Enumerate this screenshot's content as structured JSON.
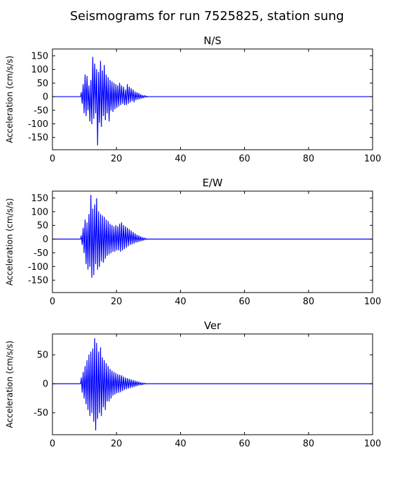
{
  "figure": {
    "title": "Seismograms for run 7525825, station sung"
  },
  "style": {
    "line_color": "#0000ff",
    "axis_color": "#000000",
    "background": "#ffffff"
  },
  "chart_data": [
    {
      "type": "line",
      "title": "N/S",
      "xlabel": "",
      "ylabel": "Acceleration (cm/s/s)",
      "xlim": [
        0,
        100
      ],
      "ylim": [
        -195,
        175
      ],
      "xticks": [
        0,
        20,
        40,
        60,
        80,
        100
      ],
      "yticks": [
        -150,
        -100,
        -50,
        0,
        50,
        100,
        150
      ],
      "grid": false,
      "series": [
        {
          "x": [
            0,
            8.8,
            9.0,
            9.3,
            9.6,
            9.9,
            10.2,
            10.5,
            10.8,
            11.1,
            11.4,
            11.7,
            12.0,
            12.3,
            12.6,
            12.9,
            13.2,
            13.5,
            13.8,
            14.1,
            14.4,
            14.7,
            15.0,
            15.3,
            15.6,
            15.9,
            16.2,
            16.5,
            16.8,
            17.1,
            17.4,
            17.7,
            18.0,
            18.3,
            18.6,
            18.9,
            19.2,
            19.5,
            19.8,
            20.1,
            20.4,
            20.7,
            21.0,
            21.3,
            21.6,
            21.9,
            22.2,
            22.5,
            22.8,
            23.1,
            23.4,
            23.7,
            24.0,
            24.3,
            24.6,
            24.9,
            25.2,
            25.5,
            25.8,
            26.1,
            26.4,
            26.7,
            27.0,
            27.3,
            27.6,
            27.9,
            28.2,
            28.5,
            28.8,
            29.1,
            29.4,
            29.7,
            30.0,
            30.5,
            100
          ],
          "y": [
            0,
            0,
            15,
            -25,
            45,
            -60,
            80,
            -70,
            75,
            -50,
            40,
            -90,
            60,
            -100,
            145,
            -80,
            120,
            -60,
            100,
            -178,
            90,
            -95,
            130,
            -110,
            95,
            -70,
            115,
            -85,
            80,
            -60,
            70,
            -90,
            60,
            -50,
            55,
            -55,
            50,
            -45,
            45,
            -40,
            40,
            -35,
            50,
            -30,
            40,
            -25,
            35,
            -30,
            25,
            -30,
            45,
            -25,
            35,
            -20,
            30,
            -15,
            25,
            -20,
            18,
            -12,
            15,
            -10,
            12,
            -8,
            8,
            -6,
            5,
            -4,
            4,
            -2,
            2,
            -1,
            0,
            0,
            0
          ]
        }
      ]
    },
    {
      "type": "line",
      "title": "E/W",
      "xlabel": "",
      "ylabel": "Acceleration (cm/s/s)",
      "xlim": [
        0,
        100
      ],
      "ylim": [
        -195,
        175
      ],
      "xticks": [
        0,
        20,
        40,
        60,
        80,
        100
      ],
      "yticks": [
        -150,
        -100,
        -50,
        0,
        50,
        100,
        150
      ],
      "grid": false,
      "series": [
        {
          "x": [
            0,
            8.8,
            9.0,
            9.3,
            9.6,
            9.9,
            10.2,
            10.5,
            10.8,
            11.1,
            11.4,
            11.7,
            12.0,
            12.3,
            12.6,
            12.9,
            13.2,
            13.5,
            13.8,
            14.1,
            14.4,
            14.7,
            15.0,
            15.3,
            15.6,
            15.9,
            16.2,
            16.5,
            16.8,
            17.1,
            17.4,
            17.7,
            18.0,
            18.3,
            18.6,
            18.9,
            19.2,
            19.5,
            19.8,
            20.1,
            20.4,
            20.7,
            21.0,
            21.3,
            21.6,
            21.9,
            22.2,
            22.5,
            22.8,
            23.1,
            23.4,
            23.7,
            24.0,
            24.3,
            24.6,
            24.9,
            25.2,
            25.5,
            25.8,
            26.1,
            26.4,
            26.7,
            27.0,
            27.3,
            27.6,
            27.9,
            28.2,
            28.5,
            28.8,
            29.1,
            29.4,
            29.7,
            30.0,
            30.5,
            100
          ],
          "y": [
            0,
            0,
            12,
            -20,
            40,
            -50,
            70,
            -90,
            60,
            -110,
            90,
            -100,
            160,
            -140,
            110,
            -130,
            125,
            -90,
            148,
            -110,
            100,
            -100,
            90,
            -80,
            85,
            -85,
            80,
            -70,
            70,
            -60,
            65,
            -55,
            55,
            -50,
            50,
            -45,
            45,
            -45,
            50,
            -40,
            45,
            -40,
            55,
            -45,
            60,
            -40,
            50,
            -35,
            45,
            -30,
            40,
            -25,
            35,
            -20,
            30,
            -18,
            25,
            -15,
            20,
            -12,
            15,
            -10,
            12,
            -8,
            9,
            -6,
            6,
            -4,
            4,
            -2,
            2,
            -1,
            0,
            0,
            0
          ]
        }
      ]
    },
    {
      "type": "line",
      "title": "Ver",
      "xlabel": "",
      "ylabel": "Acceleration (cm/s/s)",
      "xlim": [
        0,
        100
      ],
      "ylim": [
        -88,
        86
      ],
      "xticks": [
        0,
        20,
        40,
        60,
        80,
        100
      ],
      "yticks": [
        -50,
        0,
        50
      ],
      "grid": false,
      "series": [
        {
          "x": [
            0,
            8.8,
            9.0,
            9.3,
            9.6,
            9.9,
            10.2,
            10.5,
            10.8,
            11.1,
            11.4,
            11.7,
            12.0,
            12.3,
            12.6,
            12.9,
            13.2,
            13.5,
            13.8,
            14.1,
            14.4,
            14.7,
            15.0,
            15.3,
            15.6,
            15.9,
            16.2,
            16.5,
            16.8,
            17.1,
            17.4,
            17.7,
            18.0,
            18.3,
            18.6,
            18.9,
            19.2,
            19.5,
            19.8,
            20.1,
            20.4,
            20.7,
            21.0,
            21.3,
            21.6,
            21.9,
            22.2,
            22.5,
            22.8,
            23.1,
            23.4,
            23.7,
            24.0,
            24.3,
            24.6,
            24.9,
            25.2,
            25.5,
            25.8,
            26.1,
            26.4,
            26.7,
            27.0,
            27.3,
            27.6,
            27.9,
            28.2,
            28.5,
            28.8,
            29.1,
            29.4,
            29.7,
            30.0,
            30.5,
            100
          ],
          "y": [
            0,
            0,
            10,
            -15,
            20,
            -25,
            30,
            -35,
            40,
            -45,
            50,
            -55,
            55,
            -50,
            60,
            -65,
            78,
            -80,
            70,
            -60,
            55,
            -50,
            62,
            -55,
            45,
            -40,
            40,
            -45,
            35,
            -30,
            30,
            -30,
            25,
            -25,
            22,
            -20,
            20,
            -18,
            18,
            -16,
            16,
            -15,
            15,
            -14,
            14,
            -12,
            12,
            -10,
            10,
            -9,
            9,
            -8,
            8,
            -7,
            7,
            -6,
            6,
            -5,
            5,
            -4,
            4,
            -3,
            3,
            -2,
            2,
            -2,
            1.5,
            -1,
            1,
            -0.5,
            0.5,
            -0.3,
            0,
            0,
            0
          ]
        }
      ]
    }
  ]
}
